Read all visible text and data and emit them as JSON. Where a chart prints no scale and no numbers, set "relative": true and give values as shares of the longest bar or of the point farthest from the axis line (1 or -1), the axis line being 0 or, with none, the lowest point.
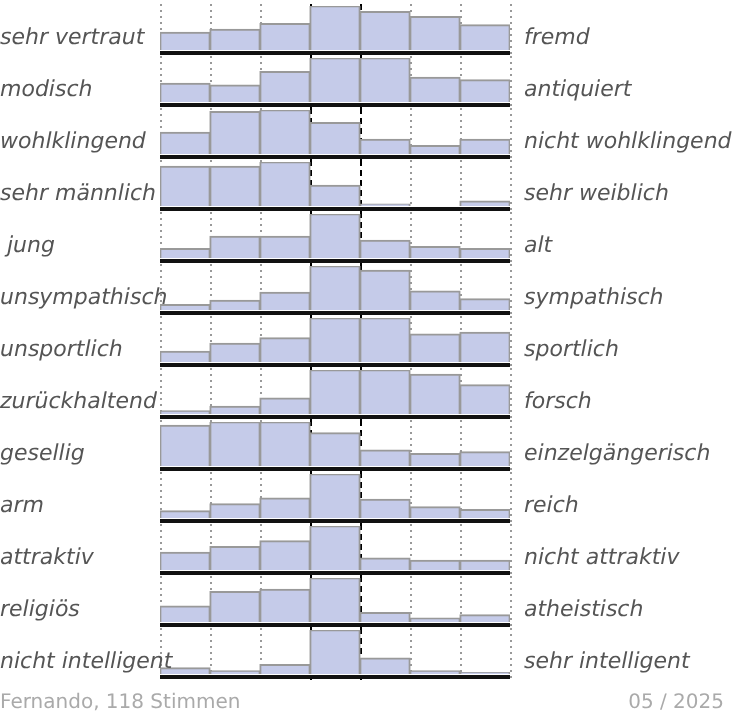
{
  "chart_data": [
    {
      "type": "bar",
      "relative": true,
      "grid": "x",
      "categories": [
        null,
        null,
        null,
        null,
        null,
        null,
        null
      ],
      "color": "#c5cbe9",
      "values": [
        0.4,
        0.47,
        0.6,
        1,
        0.87,
        0.76,
        0.57
      ],
      "annotations": [
        "sehr vertraut",
        "fremd"
      ]
    },
    {
      "type": "bar",
      "relative": true,
      "grid": "x",
      "categories": [
        null,
        null,
        null,
        null,
        null,
        null,
        null
      ],
      "color": "#c5cbe9",
      "values": [
        0.42,
        0.38,
        0.69,
        1,
        1,
        0.56,
        0.5
      ],
      "annotations": [
        "modisch",
        "antiquiert"
      ]
    },
    {
      "type": "bar",
      "relative": true,
      "grid": "x",
      "categories": [
        null,
        null,
        null,
        null,
        null,
        null,
        null
      ],
      "color": "#c5cbe9",
      "values": [
        0.49,
        0.96,
        1,
        0.71,
        0.33,
        0.19,
        0.33
      ],
      "annotations": [
        "wohlklingend",
        "nicht wohlklingend"
      ]
    },
    {
      "type": "bar",
      "relative": true,
      "grid": "x",
      "categories": [
        null,
        null,
        null,
        null,
        null,
        null,
        null
      ],
      "color": "#c5cbe9",
      "values": [
        0.9,
        0.9,
        1,
        0.47,
        0.04,
        0,
        0.11
      ],
      "annotations": [
        "sehr männlich",
        "sehr weiblich"
      ]
    },
    {
      "type": "bar",
      "relative": true,
      "grid": "x",
      "categories": [
        null,
        null,
        null,
        null,
        null,
        null,
        null
      ],
      "color": "#c5cbe9",
      "values": [
        0.21,
        0.49,
        0.49,
        1,
        0.4,
        0.26,
        0.21
      ],
      "annotations": [
        " jung",
        "alt"
      ]
    },
    {
      "type": "bar",
      "relative": true,
      "grid": "x",
      "categories": [
        null,
        null,
        null,
        null,
        null,
        null,
        null
      ],
      "color": "#c5cbe9",
      "values": [
        0.12,
        0.22,
        0.4,
        1,
        0.9,
        0.43,
        0.25
      ],
      "annotations": [
        "unsympathisch",
        "sympathisch"
      ]
    },
    {
      "type": "bar",
      "relative": true,
      "grid": "x",
      "categories": [
        null,
        null,
        null,
        null,
        null,
        null,
        null
      ],
      "color": "#c5cbe9",
      "values": [
        0.24,
        0.42,
        0.55,
        1,
        1,
        0.63,
        0.67
      ],
      "annotations": [
        "unsportlich",
        "sportlich"
      ]
    },
    {
      "type": "bar",
      "relative": true,
      "grid": "x",
      "categories": [
        null,
        null,
        null,
        null,
        null,
        null,
        null
      ],
      "color": "#c5cbe9",
      "values": [
        0.07,
        0.17,
        0.36,
        1,
        1,
        0.9,
        0.66
      ],
      "annotations": [
        "zurückhaltend",
        "forsch"
      ]
    },
    {
      "type": "bar",
      "relative": true,
      "grid": "x",
      "categories": [
        null,
        null,
        null,
        null,
        null,
        null,
        null
      ],
      "color": "#c5cbe9",
      "values": [
        0.92,
        1,
        1,
        0.75,
        0.36,
        0.28,
        0.32
      ],
      "annotations": [
        "gesellig",
        "einzelgängerisch"
      ]
    },
    {
      "type": "bar",
      "relative": true,
      "grid": "x",
      "categories": [
        null,
        null,
        null,
        null,
        null,
        null,
        null
      ],
      "color": "#c5cbe9",
      "values": [
        0.16,
        0.32,
        0.45,
        1,
        0.42,
        0.25,
        0.19
      ],
      "annotations": [
        "arm",
        "reich"
      ]
    },
    {
      "type": "bar",
      "relative": true,
      "grid": "x",
      "categories": [
        null,
        null,
        null,
        null,
        null,
        null,
        null
      ],
      "color": "#c5cbe9",
      "values": [
        0.4,
        0.53,
        0.66,
        1,
        0.27,
        0.22,
        0.22
      ],
      "annotations": [
        "attraktiv",
        "nicht attraktiv"
      ]
    },
    {
      "type": "bar",
      "relative": true,
      "grid": "x",
      "categories": [
        null,
        null,
        null,
        null,
        null,
        null,
        null
      ],
      "color": "#c5cbe9",
      "values": [
        0.36,
        0.69,
        0.74,
        1,
        0.21,
        0.09,
        0.16
      ],
      "annotations": [
        "religiös",
        "atheistisch"
      ]
    },
    {
      "type": "bar",
      "relative": true,
      "grid": "x",
      "categories": [
        null,
        null,
        null,
        null,
        null,
        null,
        null
      ],
      "color": "#c5cbe9",
      "values": [
        0.14,
        0.07,
        0.21,
        1,
        0.36,
        0.07,
        0.03
      ],
      "annotations": [
        "nicht intelligent",
        "sehr intelligent"
      ]
    },
    {
      "type": "other",
      "annotations": [
        "Fernando, 118 Stimmen",
        "05 / 2025"
      ]
    }
  ]
}
